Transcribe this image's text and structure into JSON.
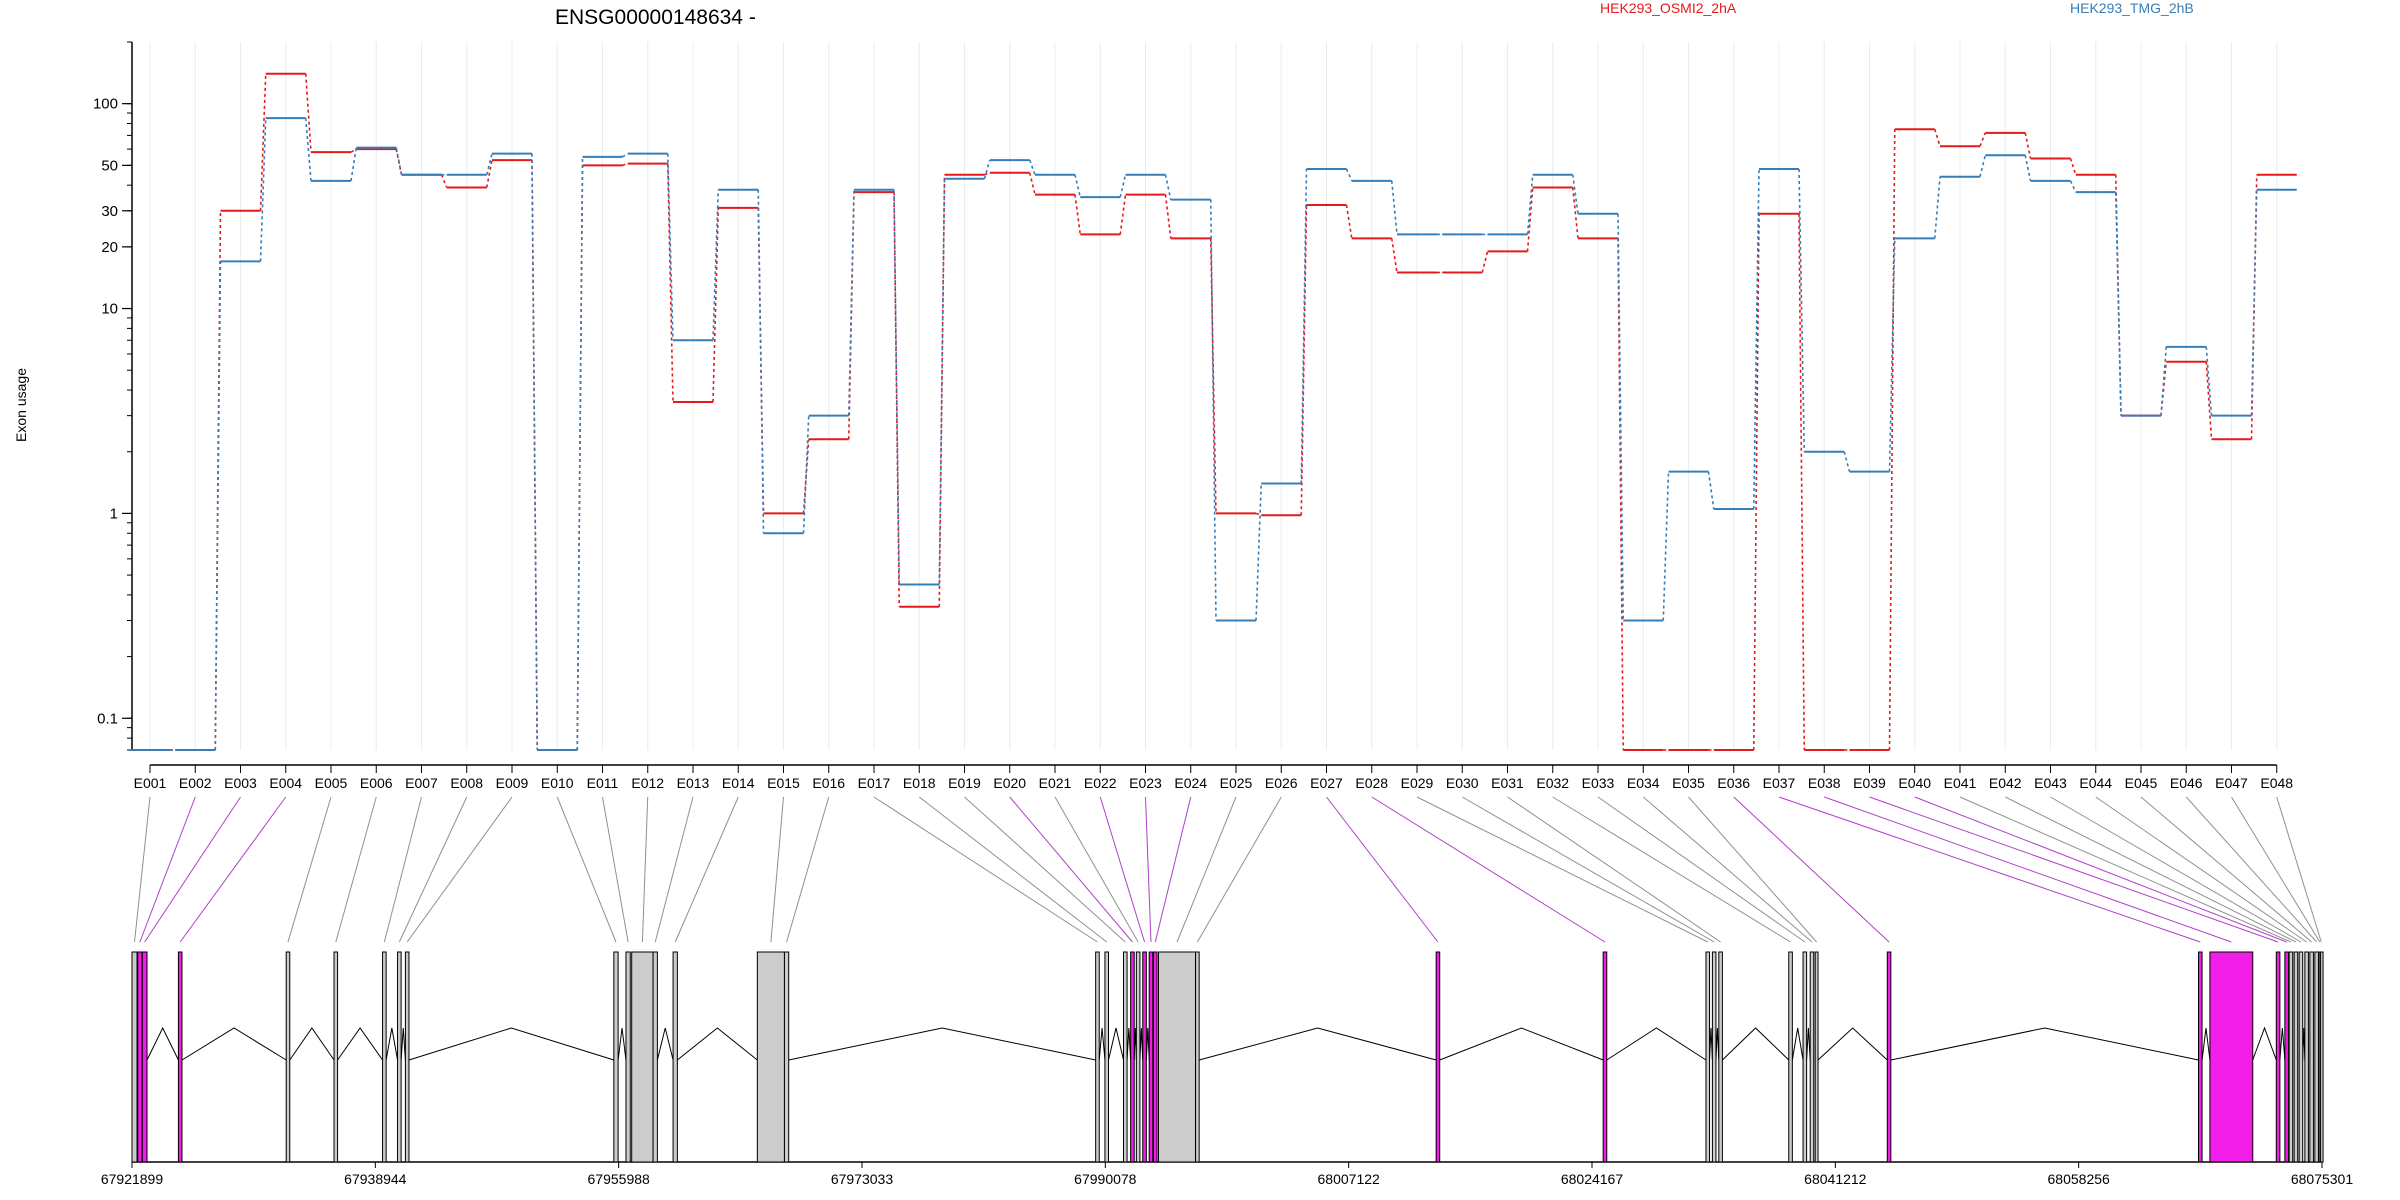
{
  "chart_data": {
    "type": "line",
    "title": "ENSG00000148634 -",
    "ylabel": "Exon usage",
    "xlabel": "",
    "y_scale": "log",
    "ylim": [
      0.07,
      200
    ],
    "y_ticks": [
      {
        "value": 0.1,
        "label": "0.1"
      },
      {
        "value": 1,
        "label": "1"
      },
      {
        "value": 10,
        "label": "10"
      },
      {
        "value": 20,
        "label": "20"
      },
      {
        "value": 30,
        "label": "30"
      },
      {
        "value": 50,
        "label": "50"
      },
      {
        "value": 100,
        "label": "100"
      }
    ],
    "categories": [
      "E001",
      "E002",
      "E003",
      "E004",
      "E005",
      "E006",
      "E007",
      "E008",
      "E009",
      "E010",
      "E011",
      "E012",
      "E013",
      "E014",
      "E015",
      "E016",
      "E017",
      "E018",
      "E019",
      "E020",
      "E021",
      "E022",
      "E023",
      "E024",
      "E025",
      "E026",
      "E027",
      "E028",
      "E029",
      "E030",
      "E031",
      "E032",
      "E033",
      "E034",
      "E035",
      "E036",
      "E037",
      "E038",
      "E039",
      "E040",
      "E041",
      "E042",
      "E043",
      "E044",
      "E045",
      "E046",
      "E047",
      "E048"
    ],
    "series": [
      {
        "name": "HEK293_OSMI2_2hA",
        "color": "#e41a1c",
        "values": [
          0.07,
          0.07,
          30,
          140,
          58,
          60,
          45,
          39,
          53,
          0.07,
          50,
          51,
          3.5,
          31,
          1.0,
          2.3,
          37,
          0.35,
          45,
          46,
          36,
          23,
          36,
          22,
          1.0,
          0.98,
          32,
          22,
          15,
          15,
          19,
          39,
          22,
          0.07,
          0.07,
          0.07,
          29,
          0.07,
          0.07,
          75,
          62,
          72,
          54,
          45,
          3.0,
          5.5,
          2.3,
          45
        ]
      },
      {
        "name": "HEK293_TMG_2hB",
        "color": "#377eb8",
        "values": [
          0.07,
          0.07,
          17,
          85,
          42,
          61,
          45,
          45,
          57,
          0.07,
          55,
          57,
          7.0,
          38,
          0.8,
          3.0,
          38,
          0.45,
          43,
          53,
          45,
          35,
          45,
          34,
          0.3,
          1.4,
          48,
          42,
          23,
          23,
          23,
          45,
          29,
          0.3,
          1.6,
          1.05,
          48,
          2.0,
          1.6,
          22,
          44,
          56,
          42,
          37,
          3.0,
          6.5,
          3.0,
          38
        ]
      }
    ],
    "gene_model": {
      "coord_ticks": [
        "67921899",
        "67938944",
        "67955988",
        "67973033",
        "67990078",
        "68007122",
        "68024167",
        "68041212",
        "68058256",
        "68075301"
      ],
      "genomic_range": [
        67921899,
        68075301
      ],
      "highlight_color": "#f01ee6",
      "exon_color": "#cccccc",
      "exons": [
        {
          "start": 67921899,
          "end": 67922250,
          "hi": false
        },
        {
          "start": 67922300,
          "end": 67922600,
          "hi": true
        },
        {
          "start": 67922620,
          "end": 67922950,
          "hi": true
        },
        {
          "start": 67925150,
          "end": 67925400,
          "hi": true
        },
        {
          "start": 67932700,
          "end": 67932950,
          "hi": false
        },
        {
          "start": 67936050,
          "end": 67936300,
          "hi": false
        },
        {
          "start": 67939450,
          "end": 67939700,
          "hi": false
        },
        {
          "start": 67940500,
          "end": 67940750,
          "hi": false
        },
        {
          "start": 67941050,
          "end": 67941300,
          "hi": false
        },
        {
          "start": 67955650,
          "end": 67955950,
          "hi": false
        },
        {
          "start": 67956500,
          "end": 67956800,
          "hi": false
        },
        {
          "start": 67956900,
          "end": 67958400,
          "hi": false
        },
        {
          "start": 67958400,
          "end": 67958700,
          "hi": false
        },
        {
          "start": 67959800,
          "end": 67960100,
          "hi": false
        },
        {
          "start": 67965700,
          "end": 67967600,
          "hi": false
        },
        {
          "start": 67967600,
          "end": 67967900,
          "hi": false
        },
        {
          "start": 67989400,
          "end": 67989650,
          "hi": false
        },
        {
          "start": 67990050,
          "end": 67990300,
          "hi": false
        },
        {
          "start": 67991350,
          "end": 67991600,
          "hi": false
        },
        {
          "start": 67991850,
          "end": 67992100,
          "hi": true
        },
        {
          "start": 67992250,
          "end": 67992500,
          "hi": false
        },
        {
          "start": 67992700,
          "end": 67992950,
          "hi": true
        },
        {
          "start": 67993150,
          "end": 67993400,
          "hi": true
        },
        {
          "start": 67993450,
          "end": 67993700,
          "hi": true
        },
        {
          "start": 67993800,
          "end": 67996400,
          "hi": false
        },
        {
          "start": 67996400,
          "end": 67996650,
          "hi": false
        },
        {
          "start": 68013250,
          "end": 68013500,
          "hi": true
        },
        {
          "start": 68024950,
          "end": 68025200,
          "hi": true
        },
        {
          "start": 68032150,
          "end": 68032400,
          "hi": false
        },
        {
          "start": 68032600,
          "end": 68032850,
          "hi": false
        },
        {
          "start": 68033050,
          "end": 68033300,
          "hi": false
        },
        {
          "start": 68037950,
          "end": 68038200,
          "hi": false
        },
        {
          "start": 68038950,
          "end": 68039200,
          "hi": false
        },
        {
          "start": 68039450,
          "end": 68039700,
          "hi": false
        },
        {
          "start": 68039800,
          "end": 68040000,
          "hi": false
        },
        {
          "start": 68044850,
          "end": 68045100,
          "hi": true
        },
        {
          "start": 68066650,
          "end": 68066900,
          "hi": true
        },
        {
          "start": 68067450,
          "end": 68070450,
          "hi": true
        },
        {
          "start": 68072100,
          "end": 68072350,
          "hi": true
        },
        {
          "start": 68072700,
          "end": 68072950,
          "hi": true
        },
        {
          "start": 68073000,
          "end": 68073250,
          "hi": false
        },
        {
          "start": 68073350,
          "end": 68073600,
          "hi": false
        },
        {
          "start": 68073700,
          "end": 68073950,
          "hi": false
        },
        {
          "start": 68074100,
          "end": 68074350,
          "hi": false
        },
        {
          "start": 68074450,
          "end": 68074700,
          "hi": false
        },
        {
          "start": 68074800,
          "end": 68075050,
          "hi": false
        },
        {
          "start": 68075100,
          "end": 68075200,
          "hi": false
        },
        {
          "start": 68075200,
          "end": 68075301,
          "hi": false
        }
      ]
    }
  }
}
